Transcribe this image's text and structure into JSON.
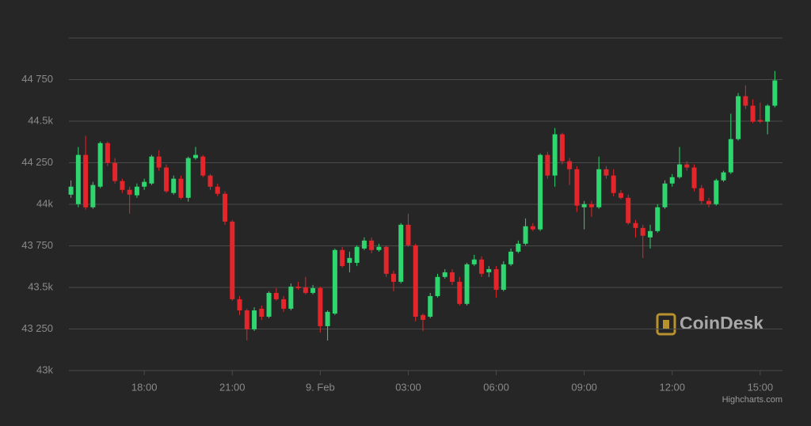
{
  "chart_data": {
    "type": "candlestick",
    "x": [
      15.5,
      15.75,
      16,
      16.25,
      16.5,
      16.75,
      17,
      17.25,
      17.5,
      17.75,
      18,
      18.25,
      18.5,
      18.75,
      19,
      19.25,
      19.5,
      19.75,
      20,
      20.25,
      20.5,
      20.75,
      21,
      21.25,
      21.5,
      21.75,
      22,
      22.25,
      22.5,
      22.75,
      23,
      23.25,
      23.5,
      23.75,
      24,
      24.25,
      24.5,
      24.75,
      25,
      25.25,
      25.5,
      25.75,
      26,
      26.25,
      26.5,
      26.75,
      27,
      27.25,
      27.5,
      27.75,
      28,
      28.25,
      28.5,
      28.75,
      29,
      29.25,
      29.5,
      29.75,
      30,
      30.25,
      30.5,
      30.75,
      31,
      31.25,
      31.5,
      31.75,
      32,
      32.25,
      32.5,
      32.75,
      33,
      33.25,
      33.5,
      33.75,
      34,
      34.25,
      34.5,
      34.75,
      35,
      35.25,
      35.5,
      35.75,
      36,
      36.25,
      36.5,
      36.75,
      37,
      37.25,
      37.5,
      37.75,
      38,
      38.25,
      38.5,
      38.75,
      39,
      39.25,
      39.5
    ],
    "open": [
      44058,
      44001,
      44297,
      43982,
      44106,
      44368,
      44249,
      44140,
      44087,
      44054,
      44106,
      44125,
      44287,
      44221,
      44068,
      44154,
      44039,
      44278,
      44287,
      44173,
      44106,
      44063,
      43896,
      43429,
      43362,
      43248,
      43372,
      43324,
      43467,
      43429,
      43372,
      43505,
      43501,
      43467,
      43496,
      43267,
      43343,
      43725,
      43648,
      43648,
      43734,
      43782,
      43725,
      43744,
      43582,
      43534,
      43877,
      43753,
      43334,
      43324,
      43448,
      43563,
      43591,
      43534,
      43401,
      43639,
      43668,
      43591,
      43610,
      43486,
      43639,
      43715,
      43763,
      43868,
      43849,
      44297,
      44173,
      44421,
      44259,
      44211,
      43982,
      44001,
      43982,
      44211,
      44173,
      44068,
      44039,
      43887,
      43858,
      43801,
      43839,
      43982,
      44125,
      44163,
      44240,
      44221,
      44097,
      44020,
      44001,
      44144,
      44192,
      44392,
      44650,
      44593,
      44507,
      44497,
      44593
    ],
    "high": [
      44144,
      44345,
      44411,
      44135,
      44378,
      44378,
      44278,
      44154,
      44106,
      44125,
      44154,
      44297,
      44325,
      44240,
      44173,
      44173,
      44287,
      44345,
      44297,
      44182,
      44125,
      44078,
      43906,
      43448,
      43372,
      43381,
      43391,
      43477,
      43496,
      43448,
      43524,
      43534,
      43563,
      43515,
      43505,
      43362,
      43734,
      43744,
      43715,
      43753,
      43801,
      43801,
      43763,
      43753,
      43601,
      43887,
      43944,
      43763,
      43343,
      43467,
      43582,
      43610,
      43610,
      43563,
      43648,
      43696,
      43687,
      43629,
      43629,
      43658,
      43734,
      43782,
      43915,
      43887,
      44306,
      44316,
      44459,
      44430,
      44278,
      44230,
      44020,
      44020,
      44287,
      44230,
      44211,
      44087,
      44058,
      43906,
      43877,
      43877,
      44001,
      44144,
      44182,
      44345,
      44259,
      44240,
      44116,
      44039,
      44154,
      44202,
      44545,
      44669,
      44716,
      44631,
      44612,
      44602,
      44802
    ],
    "low": [
      44039,
      43982,
      43968,
      43973,
      44097,
      44230,
      44125,
      44068,
      43944,
      44039,
      44087,
      44116,
      44202,
      44068,
      44058,
      44030,
      44016,
      44268,
      44163,
      44087,
      44049,
      43877,
      43420,
      43334,
      43181,
      43238,
      43305,
      43315,
      43420,
      43353,
      43362,
      43486,
      43458,
      43458,
      43229,
      43181,
      43334,
      43620,
      43591,
      43629,
      43725,
      43706,
      43715,
      43563,
      43477,
      43524,
      43744,
      43296,
      43238,
      43315,
      43439,
      43553,
      43515,
      43391,
      43391,
      43629,
      43563,
      43563,
      43439,
      43477,
      43629,
      43706,
      43753,
      43839,
      43839,
      44154,
      44106,
      44240,
      44116,
      43954,
      43849,
      43925,
      43973,
      44154,
      44049,
      44030,
      43877,
      43801,
      43677,
      43734,
      43830,
      43973,
      44106,
      44154,
      44202,
      44078,
      44001,
      43982,
      43992,
      44135,
      44182,
      44383,
      44573,
      44488,
      44488,
      44421,
      44583
    ],
    "close": [
      44106,
      44297,
      43982,
      44116,
      44368,
      44249,
      44140,
      44087,
      44058,
      44106,
      44135,
      44287,
      44221,
      44078,
      44154,
      44039,
      44278,
      44297,
      44173,
      44106,
      44063,
      43896,
      43429,
      43362,
      43248,
      43362,
      43324,
      43467,
      43429,
      43372,
      43505,
      43496,
      43467,
      43496,
      43267,
      43353,
      43725,
      43629,
      43677,
      43744,
      43782,
      43725,
      43744,
      43582,
      43534,
      43877,
      43753,
      43324,
      43305,
      43448,
      43563,
      43591,
      43534,
      43401,
      43639,
      43668,
      43582,
      43610,
      43486,
      43639,
      43715,
      43763,
      43868,
      43849,
      44297,
      44173,
      44421,
      44259,
      44211,
      43992,
      44001,
      43982,
      44211,
      44173,
      44068,
      44039,
      43887,
      43858,
      43811,
      43839,
      43982,
      44125,
      44163,
      44240,
      44221,
      44097,
      44020,
      44001,
      44144,
      44192,
      44392,
      44650,
      44593,
      44497,
      44497,
      44593,
      44745
    ],
    "up_color": "#2fd56f",
    "down_color": "#e3262b",
    "xlim": [
      15.43,
      39.76
    ],
    "ylim": [
      43000,
      45000
    ],
    "xticks": [
      {
        "value": 18,
        "label": "18:00"
      },
      {
        "value": 21,
        "label": "21:00"
      },
      {
        "value": 24,
        "label": "9. Feb"
      },
      {
        "value": 27,
        "label": "03:00"
      },
      {
        "value": 30,
        "label": "06:00"
      },
      {
        "value": 33,
        "label": "09:00"
      },
      {
        "value": 36,
        "label": "12:00"
      },
      {
        "value": 39,
        "label": "15:00"
      }
    ],
    "yticks": [
      {
        "value": 43000,
        "label": "43k"
      },
      {
        "value": 43250,
        "label": "43 250"
      },
      {
        "value": 43500,
        "label": "43.5k"
      },
      {
        "value": 43750,
        "label": "43 750"
      },
      {
        "value": 44000,
        "label": "44k"
      },
      {
        "value": 44250,
        "label": "44 250"
      },
      {
        "value": 44500,
        "label": "44.5k"
      },
      {
        "value": 44750,
        "label": "44 750"
      }
    ],
    "grid": true,
    "watermark": "CoinDesk",
    "credits": "Highcharts.com"
  }
}
